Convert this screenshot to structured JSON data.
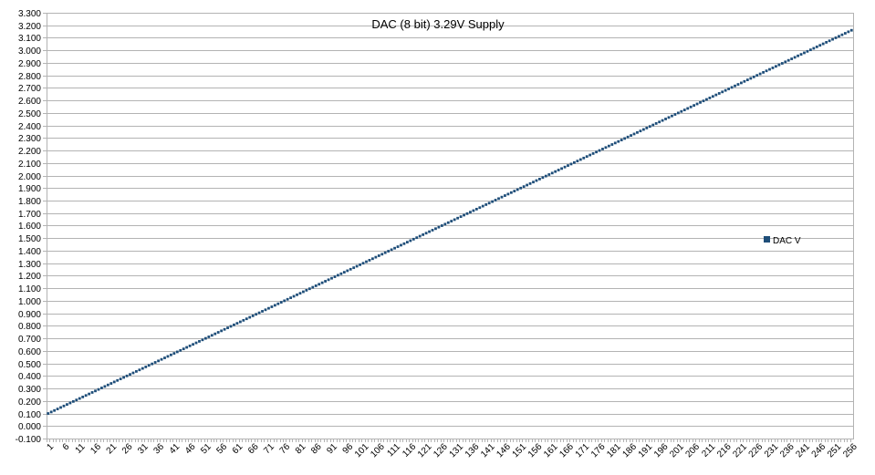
{
  "chart_data": {
    "type": "scatter",
    "title": "DAC (8 bit) 3.29V Supply",
    "xlabel": "",
    "ylabel": "",
    "x_start": 1,
    "x_end": 256,
    "x_tick_labels": [
      "1",
      "6",
      "11",
      "16",
      "21",
      "26",
      "31",
      "36",
      "41",
      "46",
      "51",
      "56",
      "61",
      "66",
      "71",
      "76",
      "81",
      "86",
      "91",
      "96",
      "101",
      "106",
      "111",
      "116",
      "121",
      "126",
      "131",
      "136",
      "141",
      "146",
      "151",
      "156",
      "161",
      "166",
      "171",
      "176",
      "181",
      "186",
      "191",
      "196",
      "201",
      "206",
      "211",
      "216",
      "221",
      "226",
      "231",
      "236",
      "241",
      "246",
      "251",
      "256"
    ],
    "y_tick_labels": [
      "-0.100",
      "0.000",
      "0.100",
      "0.200",
      "0.300",
      "0.400",
      "0.500",
      "0.600",
      "0.700",
      "0.800",
      "0.900",
      "1.000",
      "1.100",
      "1.200",
      "1.300",
      "1.400",
      "1.500",
      "1.600",
      "1.700",
      "1.800",
      "1.900",
      "2.000",
      "2.100",
      "2.200",
      "2.300",
      "2.400",
      "2.500",
      "2.600",
      "2.700",
      "2.800",
      "2.900",
      "3.000",
      "3.100",
      "3.200",
      "3.300"
    ],
    "ylim": [
      -0.1,
      3.3
    ],
    "grid": true,
    "legend_position": "right",
    "series": [
      {
        "name": "DAC V",
        "color": "#1f4e79",
        "marker": "square",
        "x_range": [
          1,
          256
        ],
        "y_first": 0.1,
        "y_last": 3.16,
        "values_note_sample": [
          [
            1,
            0.1
          ],
          [
            26,
            0.4
          ],
          [
            51,
            0.7
          ],
          [
            66,
            0.87
          ],
          [
            76,
            0.99
          ],
          [
            101,
            1.29
          ],
          [
            126,
            1.59
          ],
          [
            151,
            1.89
          ],
          [
            176,
            2.19
          ],
          [
            196,
            2.42
          ],
          [
            201,
            2.47
          ],
          [
            226,
            2.77
          ],
          [
            251,
            3.1
          ],
          [
            256,
            3.16
          ]
        ]
      }
    ]
  }
}
